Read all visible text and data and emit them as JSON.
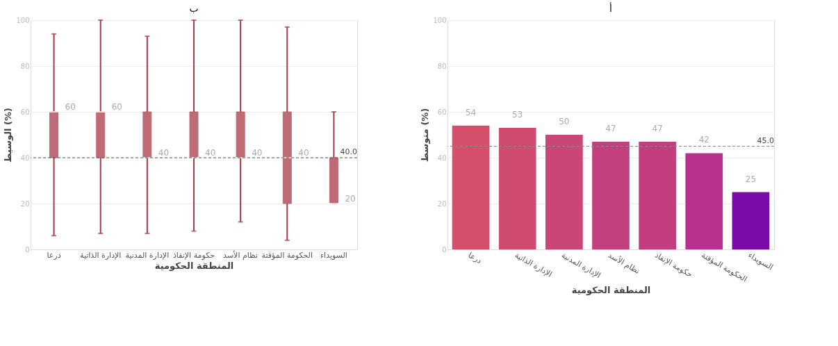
{
  "chart_data": [
    {
      "type": "box",
      "title": "ب",
      "xlabel": "المنطقة الحكومية",
      "ylabel": "الوسيط (%)",
      "categories": [
        "درعا",
        "الإدارة الذاتية",
        "الإدارة المدنية",
        "حكومة الإنقاذ",
        "نظام الأسد",
        "الحكومة المؤقتة",
        "السويداء"
      ],
      "series": [
        {
          "color": "#a83a48",
          "boxes": [
            {
              "low": 6,
              "q1": 40,
              "median": 60,
              "q3": 60,
              "high": 94
            },
            {
              "low": 7,
              "q1": 40,
              "median": 60,
              "q3": 60,
              "high": 100
            },
            {
              "low": 7,
              "q1": 40,
              "median": 40,
              "q3": 60,
              "high": 93
            },
            {
              "low": 8,
              "q1": 40,
              "median": 40,
              "q3": 60,
              "high": 100
            },
            {
              "low": 12,
              "q1": 40,
              "median": 40,
              "q3": 60,
              "high": 100
            },
            {
              "low": 4,
              "q1": 20,
              "median": 40,
              "q3": 60,
              "high": 97
            },
            {
              "low": 20,
              "q1": 20,
              "median": 20,
              "q3": 40,
              "high": 60
            }
          ]
        }
      ],
      "value_labels": [
        "60",
        "60",
        "40",
        "40",
        "40",
        "40",
        "20"
      ],
      "ref_lines": [
        {
          "axis": "y",
          "value": 40,
          "label": "40.0",
          "color": "#555555",
          "line_style": "dashed"
        }
      ],
      "ylim": [
        0,
        100
      ],
      "yticks": [
        0,
        20,
        40,
        60,
        80,
        100
      ],
      "grid": "y"
    },
    {
      "type": "bar",
      "title": "أ",
      "xlabel": "المنطقة الحكومية",
      "ylabel": "متوسط (%)",
      "categories": [
        "درعا",
        "الإدارة الذاتية",
        "الإدارة المدنية",
        "نظام الأسد",
        "حكومة الإنقاذ",
        "الحكومة المؤقتة",
        "السويداء"
      ],
      "values": [
        54,
        53,
        50,
        47,
        47,
        42,
        25
      ],
      "colors": [
        "#d4506a",
        "#d04b70",
        "#c94676",
        "#c2407c",
        "#c23e7e",
        "#b9318e",
        "#7a0ba8"
      ],
      "data_labels": true,
      "ref_lines": [
        {
          "axis": "y",
          "value": 45,
          "label": "45.0",
          "color": "#888888",
          "line_style": "dashed"
        }
      ],
      "ylim": [
        0,
        100
      ],
      "yticks": [
        0,
        20,
        40,
        60,
        80,
        100
      ],
      "grid": "y"
    }
  ]
}
